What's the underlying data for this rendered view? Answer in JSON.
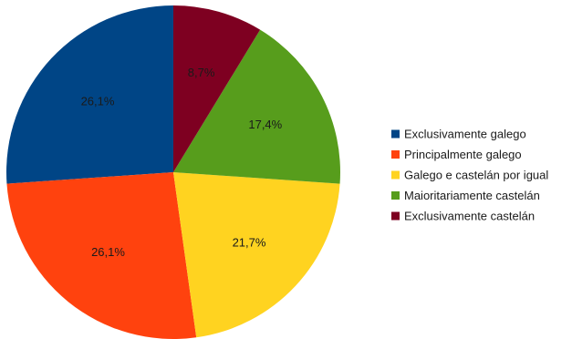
{
  "chart_data": {
    "type": "pie",
    "start": "12 o'clock",
    "direction": "counter-clockwise",
    "legend_position": "right",
    "slices": [
      {
        "name": "Exclusivamente galego",
        "value": 26.1,
        "label": "26,1%",
        "color": "#004586"
      },
      {
        "name": "Principalmente galego",
        "value": 26.1,
        "label": "26,1%",
        "color": "#ff420e"
      },
      {
        "name": "Galego e castelán por igual",
        "value": 21.7,
        "label": "21,7%",
        "color": "#ffd320"
      },
      {
        "name": "Maioritariamente castelán",
        "value": 17.4,
        "label": "17,4%",
        "color": "#579d1c"
      },
      {
        "name": "Exclusivamente castelán",
        "value": 8.7,
        "label": "8,7%",
        "color": "#7e0021"
      }
    ]
  }
}
